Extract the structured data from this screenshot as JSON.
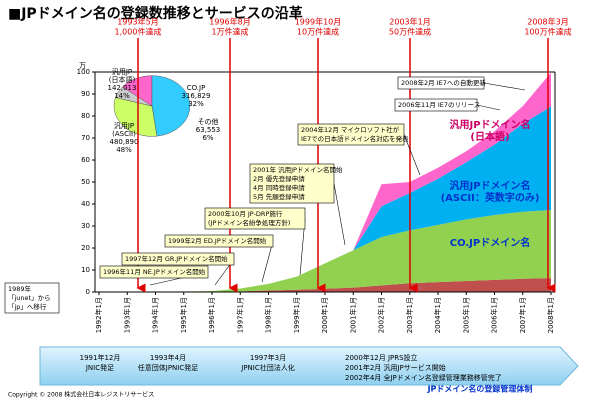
{
  "title": "■JPドメイン名の登録数推移とサービスの沿革",
  "chart_data": [
    {
      "type": "area",
      "stacked": true,
      "y_unit": "万",
      "categories": [
        "1992年1月",
        "1993年1月",
        "1994年1月",
        "1995年1月",
        "1996年1月",
        "1997年1月",
        "1998年1月",
        "1999年1月",
        "2000年1月",
        "2001年1月",
        "2002年1月",
        "2003年1月",
        "2004年1月",
        "2005年1月",
        "2006年1月",
        "2007年1月",
        "2008年1月"
      ],
      "ylim": [
        0,
        100
      ],
      "yticks": [
        0,
        10,
        20,
        30,
        40,
        50,
        60,
        70,
        80,
        90,
        100
      ],
      "grid": false,
      "series": [
        {
          "color": "#c0504d",
          "values": [
            0,
            0.01,
            0.02,
            0.05,
            0.1,
            0.3,
            0.7,
            1,
            1.5,
            2,
            3,
            4,
            4.5,
            5,
            5.5,
            6,
            6.3
          ]
        },
        {
          "name": "CO.JPドメイン名",
          "color": "#92d050",
          "label_color": "#0033cc",
          "values": [
            0,
            0.02,
            0.08,
            0.2,
            0.3,
            1.3,
            3,
            6,
            11.5,
            17,
            22,
            24,
            26,
            28,
            29.5,
            30.5,
            31
          ]
        },
        {
          "name": "汎用JPドメイン名",
          "subname": "(ASCII：英数字のみ)",
          "color": "#00b0f0",
          "label_color": "#0033cc",
          "values": [
            0,
            0,
            0,
            0,
            0,
            0,
            0,
            0,
            0,
            0,
            14,
            17,
            21,
            26,
            32,
            40,
            47
          ]
        },
        {
          "name": "汎用JPドメイン名",
          "subname": "(日本語)",
          "color": "#ff66cc",
          "label_color": "#cc0066",
          "values": [
            0,
            0,
            0,
            0,
            0,
            0,
            0,
            0,
            0,
            0,
            10,
            5,
            5,
            5,
            6,
            8,
            15.4
          ]
        }
      ]
    },
    {
      "type": "pie",
      "categories": [
        [
          "汎用JP",
          "(日本語)"
        ],
        [
          "汎用JP",
          "(ASCII)"
        ],
        [
          "CO.JP"
        ],
        [
          "その他"
        ]
      ],
      "values": [
        142013,
        480890,
        316829,
        63553
      ],
      "value_labels": [
        "142,013",
        "480,890",
        "316,829",
        "63,553"
      ],
      "percent_labels": [
        "14%",
        "48%",
        "32%",
        "6%"
      ],
      "colors": [
        "#ff66cc",
        "#33ccff",
        "#ccff66",
        "#cccccc"
      ]
    }
  ],
  "milestones": [
    [
      "1993年5月",
      "1,000件達成"
    ],
    [
      "1996年8月",
      "1万件達成"
    ],
    [
      "1999年10月",
      "10万件達成"
    ],
    [
      "2003年1月",
      "50万件達成"
    ],
    [
      "2008年3月",
      "100万件達成"
    ]
  ],
  "callouts": [
    [
      "1989年",
      "「junet」から",
      "「jp」へ移行"
    ],
    [
      "1996年11月 NE.JPドメイン名開始"
    ],
    [
      "1997年12月 GR.JPドメイン名開始"
    ],
    [
      "1999年2月 ED.JPドメイン名開始"
    ],
    [
      "2000年10月 JP-DRP施行",
      "(JPドメイン名紛争処理方針)"
    ],
    [
      "2001年 汎用JPドメイン名開始",
      "2月 優先登録申請",
      "4月 同時登録申請",
      "5月 先願登録申請"
    ],
    [
      "2004年12月 マイクロソフト社が",
      "IE7での日本語ドメイン名対応を発表"
    ],
    [
      "2006年11月 IE7のリリース"
    ],
    [
      "2008年2月 IE7への自動更新"
    ]
  ],
  "timeline": [
    [
      "1991年12月",
      "JNIC発足"
    ],
    [
      "1993年4月",
      "任意団体JPNIC発足"
    ],
    [
      "1997年3月",
      "JPNIC社団法人化"
    ],
    [
      "2000年12月 JPRS設立",
      "2001年2月 汎用JPサービス開始",
      "2002年4月 全JPドメイン名登録管理業務移管完了"
    ]
  ],
  "timeline_label": "JPドメイン名の登録管理体制",
  "footer": "Copyright © 2008 株式会社日本レジストリサービス"
}
